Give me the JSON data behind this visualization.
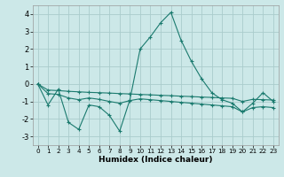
{
  "xlabel": "Humidex (Indice chaleur)",
  "background_color": "#cce8e8",
  "grid_color": "#aacccc",
  "line_color": "#1a7a6e",
  "xlim": [
    -0.5,
    23.5
  ],
  "ylim": [
    -3.5,
    4.5
  ],
  "xticks": [
    0,
    1,
    2,
    3,
    4,
    5,
    6,
    7,
    8,
    9,
    10,
    11,
    12,
    13,
    14,
    15,
    16,
    17,
    18,
    19,
    20,
    21,
    22,
    23
  ],
  "yticks": [
    -3,
    -2,
    -1,
    0,
    1,
    2,
    3,
    4
  ],
  "series1_x": [
    0,
    1,
    2,
    3,
    4,
    5,
    6,
    7,
    8,
    9,
    10,
    11,
    12,
    13,
    14,
    15,
    16,
    17,
    18,
    19,
    20,
    21,
    22,
    23
  ],
  "series1_y": [
    0.0,
    -1.2,
    -0.3,
    -2.2,
    -2.6,
    -1.2,
    -1.3,
    -1.8,
    -2.7,
    -0.9,
    2.0,
    2.7,
    3.5,
    4.1,
    2.5,
    1.3,
    0.3,
    -0.5,
    -0.9,
    -1.1,
    -1.6,
    -1.1,
    -0.5,
    -1.0
  ],
  "series2_x": [
    0,
    1,
    2,
    3,
    4,
    5,
    6,
    7,
    8,
    9,
    10,
    11,
    12,
    13,
    14,
    15,
    16,
    17,
    18,
    19,
    20,
    21,
    22,
    23
  ],
  "series2_y": [
    0.0,
    -0.35,
    -0.38,
    -0.42,
    -0.45,
    -0.48,
    -0.5,
    -0.52,
    -0.55,
    -0.57,
    -0.6,
    -0.62,
    -0.65,
    -0.67,
    -0.7,
    -0.72,
    -0.75,
    -0.77,
    -0.8,
    -0.82,
    -1.0,
    -0.88,
    -0.9,
    -0.92
  ],
  "series3_x": [
    0,
    1,
    2,
    3,
    4,
    5,
    6,
    7,
    8,
    9,
    10,
    11,
    12,
    13,
    14,
    15,
    16,
    17,
    18,
    19,
    20,
    21,
    22,
    23
  ],
  "series3_y": [
    0.0,
    -0.55,
    -0.6,
    -0.8,
    -0.9,
    -0.8,
    -0.88,
    -1.0,
    -1.1,
    -0.95,
    -0.85,
    -0.9,
    -0.95,
    -1.0,
    -1.05,
    -1.1,
    -1.15,
    -1.2,
    -1.25,
    -1.3,
    -1.6,
    -1.35,
    -1.3,
    -1.35
  ]
}
